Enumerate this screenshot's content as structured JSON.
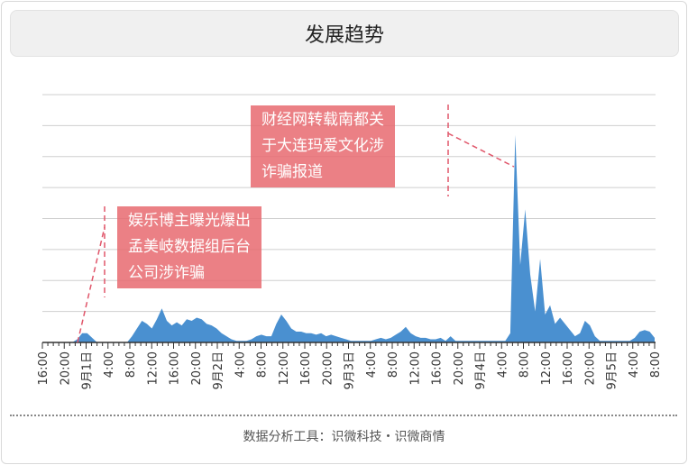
{
  "title": "发展趋势",
  "footer": "数据分析工具：识微科技・识微商情",
  "colors": {
    "area": "#4a90d0",
    "grid": "#cfcfcf",
    "annotation": "#e86a70",
    "dash": "#e0566a"
  },
  "chart_data": {
    "type": "area",
    "x_tick_labels": [
      "16:00",
      "20:00",
      "9月1日",
      "4:00",
      "8:00",
      "12:00",
      "16:00",
      "20:00",
      "9月2日",
      "4:00",
      "8:00",
      "12:00",
      "16:00",
      "20:00",
      "9月3日",
      "4:00",
      "8:00",
      "12:00",
      "16:00",
      "20:00",
      "9月4日",
      "4:00",
      "8:00",
      "12:00",
      "16:00",
      "20:00",
      "9月5日",
      "4:00",
      "8:00"
    ],
    "ylim": [
      0,
      8
    ],
    "grid": true,
    "values": [
      0,
      0,
      0,
      0,
      0,
      0,
      0,
      0.1,
      0.3,
      0.3,
      0.15,
      0,
      0,
      0,
      0,
      0,
      0,
      0,
      0.2,
      0.45,
      0.7,
      0.6,
      0.45,
      0.75,
      1.1,
      0.7,
      0.55,
      0.65,
      0.55,
      0.75,
      0.7,
      0.8,
      0.75,
      0.6,
      0.55,
      0.45,
      0.3,
      0.2,
      0.1,
      0.05,
      0.05,
      0.05,
      0.1,
      0.2,
      0.25,
      0.2,
      0.2,
      0.6,
      0.9,
      0.7,
      0.45,
      0.35,
      0.35,
      0.3,
      0.3,
      0.25,
      0.3,
      0.2,
      0.25,
      0.2,
      0.15,
      0.1,
      0.05,
      0.05,
      0.05,
      0.05,
      0.05,
      0.1,
      0.15,
      0.1,
      0.15,
      0.25,
      0.35,
      0.5,
      0.3,
      0.2,
      0.15,
      0.15,
      0.1,
      0.1,
      0.15,
      0.05,
      0.2,
      0.05,
      0.05,
      0.05,
      0.05,
      0.05,
      0.05,
      0.05,
      0.05,
      0.05,
      0.05,
      0.05,
      0.3,
      6.7,
      2.5,
      4.3,
      2.2,
      1.0,
      2.7,
      0.9,
      1.2,
      0.6,
      0.8,
      0.6,
      0.4,
      0.2,
      0.3,
      0.7,
      0.55,
      0.2,
      0.05,
      0.05,
      0.05,
      0.05,
      0.05,
      0.05,
      0.05,
      0.15,
      0.35,
      0.4,
      0.35,
      0.15
    ],
    "annotations": [
      {
        "text_lines": [
          "娱乐博主曝光爆出",
          "孟美岐数据组后台",
          "公司涉诈骗"
        ]
      },
      {
        "text_lines": [
          "财经网转载南都关",
          "于大连玛爱文化涉",
          "诈骗报道"
        ]
      }
    ]
  }
}
